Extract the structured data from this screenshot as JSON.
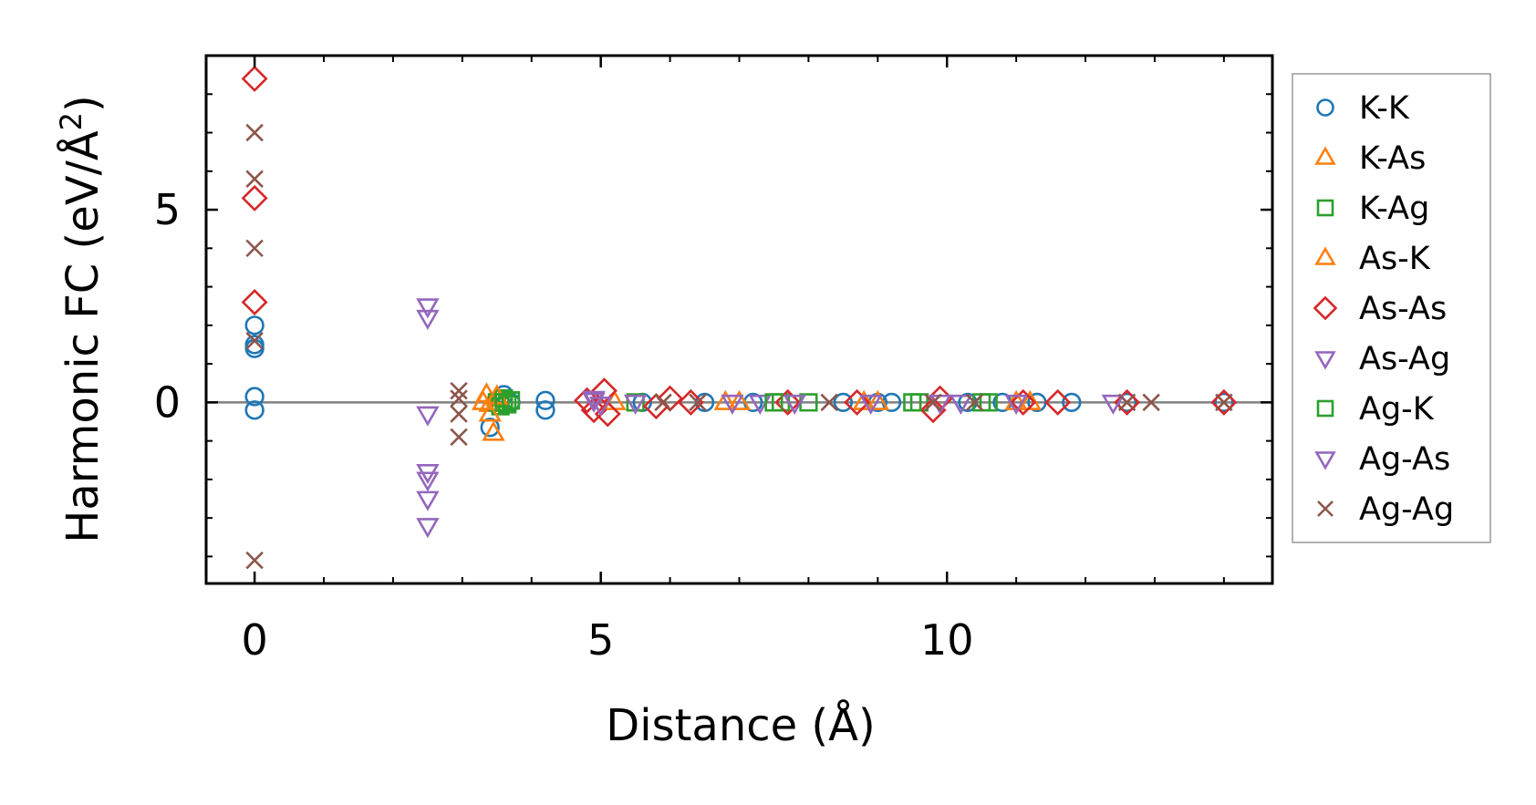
{
  "chart_data": {
    "type": "scatter",
    "xlabel": "Distance (Å)",
    "ylabel_main": "Harmonic FC (eV/Å",
    "ylabel_sup": "2",
    "ylabel_close": ")",
    "xlim": [
      -0.7,
      14.7
    ],
    "ylim": [
      -4.7,
      9.0
    ],
    "xticks": [
      0,
      5,
      10
    ],
    "xtick_labels": [
      "0",
      "5",
      "10"
    ],
    "yticks": [
      0,
      5
    ],
    "ytick_labels": [
      "0",
      "5"
    ],
    "x_minor_step": 1,
    "y_minor_step": 1,
    "reference_line_y": 0,
    "legend_position": "outside-right",
    "series": [
      {
        "name": "K-K",
        "marker": "circle",
        "color": "#1f77b4",
        "points": [
          [
            0,
            2.0
          ],
          [
            0,
            1.5
          ],
          [
            0,
            1.4
          ],
          [
            0,
            0.15
          ],
          [
            0,
            -0.2
          ],
          [
            3.4,
            -0.65
          ],
          [
            3.6,
            0.2
          ],
          [
            3.7,
            0.0
          ],
          [
            4.2,
            0.05
          ],
          [
            4.2,
            -0.2
          ],
          [
            5.6,
            0.0
          ],
          [
            6.5,
            0.0
          ],
          [
            7.2,
            0.0
          ],
          [
            8.5,
            0.0
          ],
          [
            9.0,
            0.0
          ],
          [
            9.2,
            0.0
          ],
          [
            10.3,
            0.0
          ],
          [
            10.8,
            0.0
          ],
          [
            11.3,
            0.0
          ],
          [
            11.8,
            0.0
          ],
          [
            12.6,
            0.0
          ],
          [
            14.0,
            0.0
          ]
        ]
      },
      {
        "name": "K-As",
        "marker": "triangle-up",
        "color": "#ff7f0e",
        "points": [
          [
            3.35,
            0.2
          ],
          [
            3.4,
            -0.05
          ],
          [
            3.45,
            -0.8
          ],
          [
            3.5,
            0.1
          ],
          [
            6.8,
            0.0
          ],
          [
            8.8,
            0.0
          ],
          [
            11.2,
            0.0
          ]
        ]
      },
      {
        "name": "K-Ag",
        "marker": "square",
        "color": "#2ca02c",
        "points": [
          [
            3.5,
            0.0
          ],
          [
            3.55,
            -0.1
          ],
          [
            3.6,
            0.1
          ],
          [
            3.65,
            -0.05
          ],
          [
            3.7,
            0.05
          ],
          [
            5.5,
            0.0
          ],
          [
            7.6,
            0.0
          ],
          [
            8.0,
            0.0
          ],
          [
            9.6,
            0.0
          ],
          [
            10.5,
            0.0
          ]
        ]
      },
      {
        "name": "As-K",
        "marker": "triangle-up",
        "color": "#ff7f0e",
        "points": [
          [
            3.3,
            0.0
          ],
          [
            3.4,
            -0.3
          ],
          [
            3.5,
            0.15
          ],
          [
            5.2,
            0.0
          ],
          [
            7.0,
            0.0
          ],
          [
            9.0,
            0.0
          ],
          [
            11.0,
            0.0
          ]
        ]
      },
      {
        "name": "As-As",
        "marker": "diamond",
        "color": "#d62728",
        "points": [
          [
            0,
            8.4
          ],
          [
            0,
            5.3
          ],
          [
            0,
            2.6
          ],
          [
            4.8,
            0.05
          ],
          [
            4.9,
            -0.2
          ],
          [
            5.05,
            0.3
          ],
          [
            5.1,
            -0.3
          ],
          [
            5.8,
            -0.1
          ],
          [
            6.0,
            0.1
          ],
          [
            6.3,
            0.0
          ],
          [
            7.7,
            0.0
          ],
          [
            8.7,
            0.0
          ],
          [
            9.8,
            -0.2
          ],
          [
            9.9,
            0.1
          ],
          [
            11.1,
            0.0
          ],
          [
            11.6,
            0.0
          ],
          [
            12.6,
            0.0
          ],
          [
            14.0,
            0.0
          ]
        ]
      },
      {
        "name": "As-Ag",
        "marker": "triangle-down",
        "color": "#9467bd",
        "points": [
          [
            2.5,
            2.5
          ],
          [
            2.5,
            2.2
          ],
          [
            2.5,
            -0.3
          ],
          [
            2.5,
            -1.8
          ],
          [
            2.5,
            -2.0
          ],
          [
            2.5,
            -2.5
          ],
          [
            2.5,
            -3.2
          ],
          [
            4.9,
            0.05
          ],
          [
            5.5,
            0.0
          ],
          [
            7.3,
            0.0
          ],
          [
            8.9,
            0.0
          ],
          [
            10.2,
            0.0
          ],
          [
            12.4,
            0.0
          ]
        ]
      },
      {
        "name": "Ag-K",
        "marker": "square",
        "color": "#2ca02c",
        "points": [
          [
            3.6,
            0.0
          ],
          [
            3.7,
            0.05
          ],
          [
            7.5,
            0.0
          ],
          [
            9.5,
            0.0
          ],
          [
            10.6,
            0.0
          ]
        ]
      },
      {
        "name": "Ag-As",
        "marker": "triangle-down",
        "color": "#9467bd",
        "points": [
          [
            4.9,
            0.1
          ],
          [
            5.0,
            -0.05
          ],
          [
            6.9,
            0.0
          ],
          [
            7.8,
            0.0
          ],
          [
            9.9,
            0.0
          ],
          [
            11.0,
            0.0
          ]
        ]
      },
      {
        "name": "Ag-Ag",
        "marker": "x",
        "color": "#8c564b",
        "points": [
          [
            0,
            7.0
          ],
          [
            0,
            5.8
          ],
          [
            0,
            4.0
          ],
          [
            0,
            1.6
          ],
          [
            0,
            -4.1
          ],
          [
            2.95,
            0.3
          ],
          [
            2.95,
            0.1
          ],
          [
            2.95,
            -0.3
          ],
          [
            2.95,
            -0.9
          ],
          [
            5.9,
            0.0
          ],
          [
            6.4,
            0.0
          ],
          [
            8.3,
            0.0
          ],
          [
            9.8,
            0.0
          ],
          [
            10.4,
            0.0
          ],
          [
            12.6,
            0.0
          ],
          [
            12.95,
            0.0
          ],
          [
            14.0,
            0.0
          ]
        ]
      }
    ]
  }
}
